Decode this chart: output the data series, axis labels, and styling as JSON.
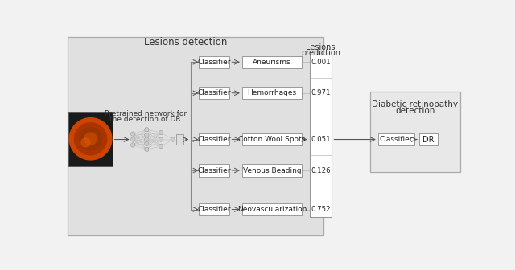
{
  "title": "Lesions detection",
  "lesion_labels": [
    "Aneurisms",
    "Hemorrhages",
    "Cotton Wool Spots",
    "Venous Beading",
    "Neovascularization"
  ],
  "prediction_values": [
    "0.001",
    "0.971",
    "0.051",
    "0.126",
    "0.752"
  ],
  "pretrained_text_1": "Pretrained network for",
  "pretrained_text_2": "the detection of DR",
  "lesions_pred_1": "Lesions",
  "lesions_pred_2": "prediction",
  "dr_title_1": "Diabetic retinopathy",
  "dr_title_2": "detection",
  "classifier_text": "Classifier",
  "dr_text": "DR",
  "bg_panel_color": "#e0e0e0",
  "dr_panel_color": "#e8e8e8",
  "box_fc": "#ffffff",
  "box_ec": "#999999",
  "arrow_color": "#555555",
  "line_color": "#888888",
  "nn_node_color": "#cccccc",
  "nn_node_ec": "#999999",
  "nn_line_color": "#bbbbbb",
  "eye_dark": "#1a1a1a",
  "eye_orange": "#cc4400",
  "eye_mid": "#aa3300",
  "eye_light": "#dd5500"
}
